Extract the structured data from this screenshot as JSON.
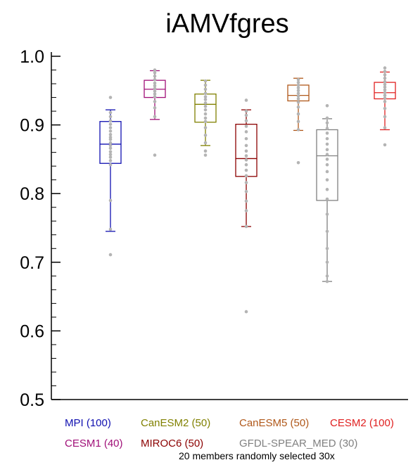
{
  "chart_data": {
    "type": "box",
    "title": "iAMVfgres",
    "xlabel": "",
    "ylabel": "",
    "ylim": [
      0.5,
      1.0
    ],
    "yticks": [
      "0.5",
      "0.6",
      "0.7",
      "0.8",
      "0.9",
      "1.0"
    ],
    "grid": false,
    "series": [
      {
        "name": "MPI (100)",
        "color": "#1010b0",
        "whisker_low": 0.745,
        "q1": 0.844,
        "median": 0.872,
        "q3": 0.905,
        "whisker_high": 0.922,
        "points": [
          0.711,
          0.748,
          0.79,
          0.842,
          0.848,
          0.853,
          0.857,
          0.861,
          0.866,
          0.87,
          0.874,
          0.879,
          0.882,
          0.886,
          0.891,
          0.896,
          0.901,
          0.906,
          0.912,
          0.918,
          0.94
        ]
      },
      {
        "name": "CESM1 (40)",
        "color": "#a01078",
        "whisker_low": 0.908,
        "q1": 0.94,
        "median": 0.952,
        "q3": 0.965,
        "whisker_high": 0.979,
        "points": [
          0.856,
          0.912,
          0.925,
          0.934,
          0.941,
          0.945,
          0.949,
          0.953,
          0.957,
          0.961,
          0.966,
          0.971,
          0.976,
          0.98
        ]
      },
      {
        "name": "CanESM2 (50)",
        "color": "#808000",
        "whisker_low": 0.87,
        "q1": 0.904,
        "median": 0.93,
        "q3": 0.945,
        "whisker_high": 0.965,
        "points": [
          0.856,
          0.862,
          0.874,
          0.885,
          0.896,
          0.905,
          0.91,
          0.916,
          0.922,
          0.927,
          0.932,
          0.937,
          0.941,
          0.946,
          0.952,
          0.958,
          0.964
        ]
      },
      {
        "name": "MIROC6 (50)",
        "color": "#8b0000",
        "whisker_low": 0.752,
        "q1": 0.825,
        "median": 0.851,
        "q3": 0.901,
        "whisker_high": 0.922,
        "points": [
          0.628,
          0.752,
          0.775,
          0.789,
          0.803,
          0.816,
          0.826,
          0.834,
          0.842,
          0.849,
          0.855,
          0.862,
          0.87,
          0.88,
          0.89,
          0.898,
          0.906,
          0.914,
          0.92,
          0.936
        ]
      },
      {
        "name": "CanESM5 (50)",
        "color": "#b0581a",
        "whisker_low": 0.892,
        "q1": 0.935,
        "median": 0.943,
        "q3": 0.958,
        "whisker_high": 0.968,
        "points": [
          0.845,
          0.893,
          0.905,
          0.916,
          0.926,
          0.933,
          0.938,
          0.942,
          0.946,
          0.95,
          0.954,
          0.958,
          0.962,
          0.966
        ]
      },
      {
        "name": "GFDL-SPEAR_MED (30)",
        "color": "#808080",
        "whisker_low": 0.672,
        "q1": 0.79,
        "median": 0.855,
        "q3": 0.893,
        "whisker_high": 0.909,
        "points": [
          0.672,
          0.68,
          0.7,
          0.72,
          0.745,
          0.77,
          0.792,
          0.806,
          0.82,
          0.832,
          0.842,
          0.85,
          0.857,
          0.864,
          0.872,
          0.88,
          0.888,
          0.895,
          0.903,
          0.91,
          0.928
        ]
      },
      {
        "name": "CESM2 (100)",
        "color": "#e02020",
        "whisker_low": 0.893,
        "q1": 0.938,
        "median": 0.947,
        "q3": 0.962,
        "whisker_high": 0.977,
        "points": [
          0.871,
          0.896,
          0.912,
          0.924,
          0.934,
          0.939,
          0.943,
          0.947,
          0.951,
          0.955,
          0.959,
          0.963,
          0.968,
          0.973,
          0.978,
          0.983
        ]
      }
    ],
    "legend": {
      "row1": [
        "MPI (100)",
        "CanESM2 (50)",
        "CanESM5 (50)",
        "CESM2 (100)"
      ],
      "row2": [
        "CESM1 (40)",
        "MIROC6 (50)",
        "GFDL-SPEAR_MED (30)"
      ]
    },
    "footnote": "20 members randomly selected 30x"
  }
}
